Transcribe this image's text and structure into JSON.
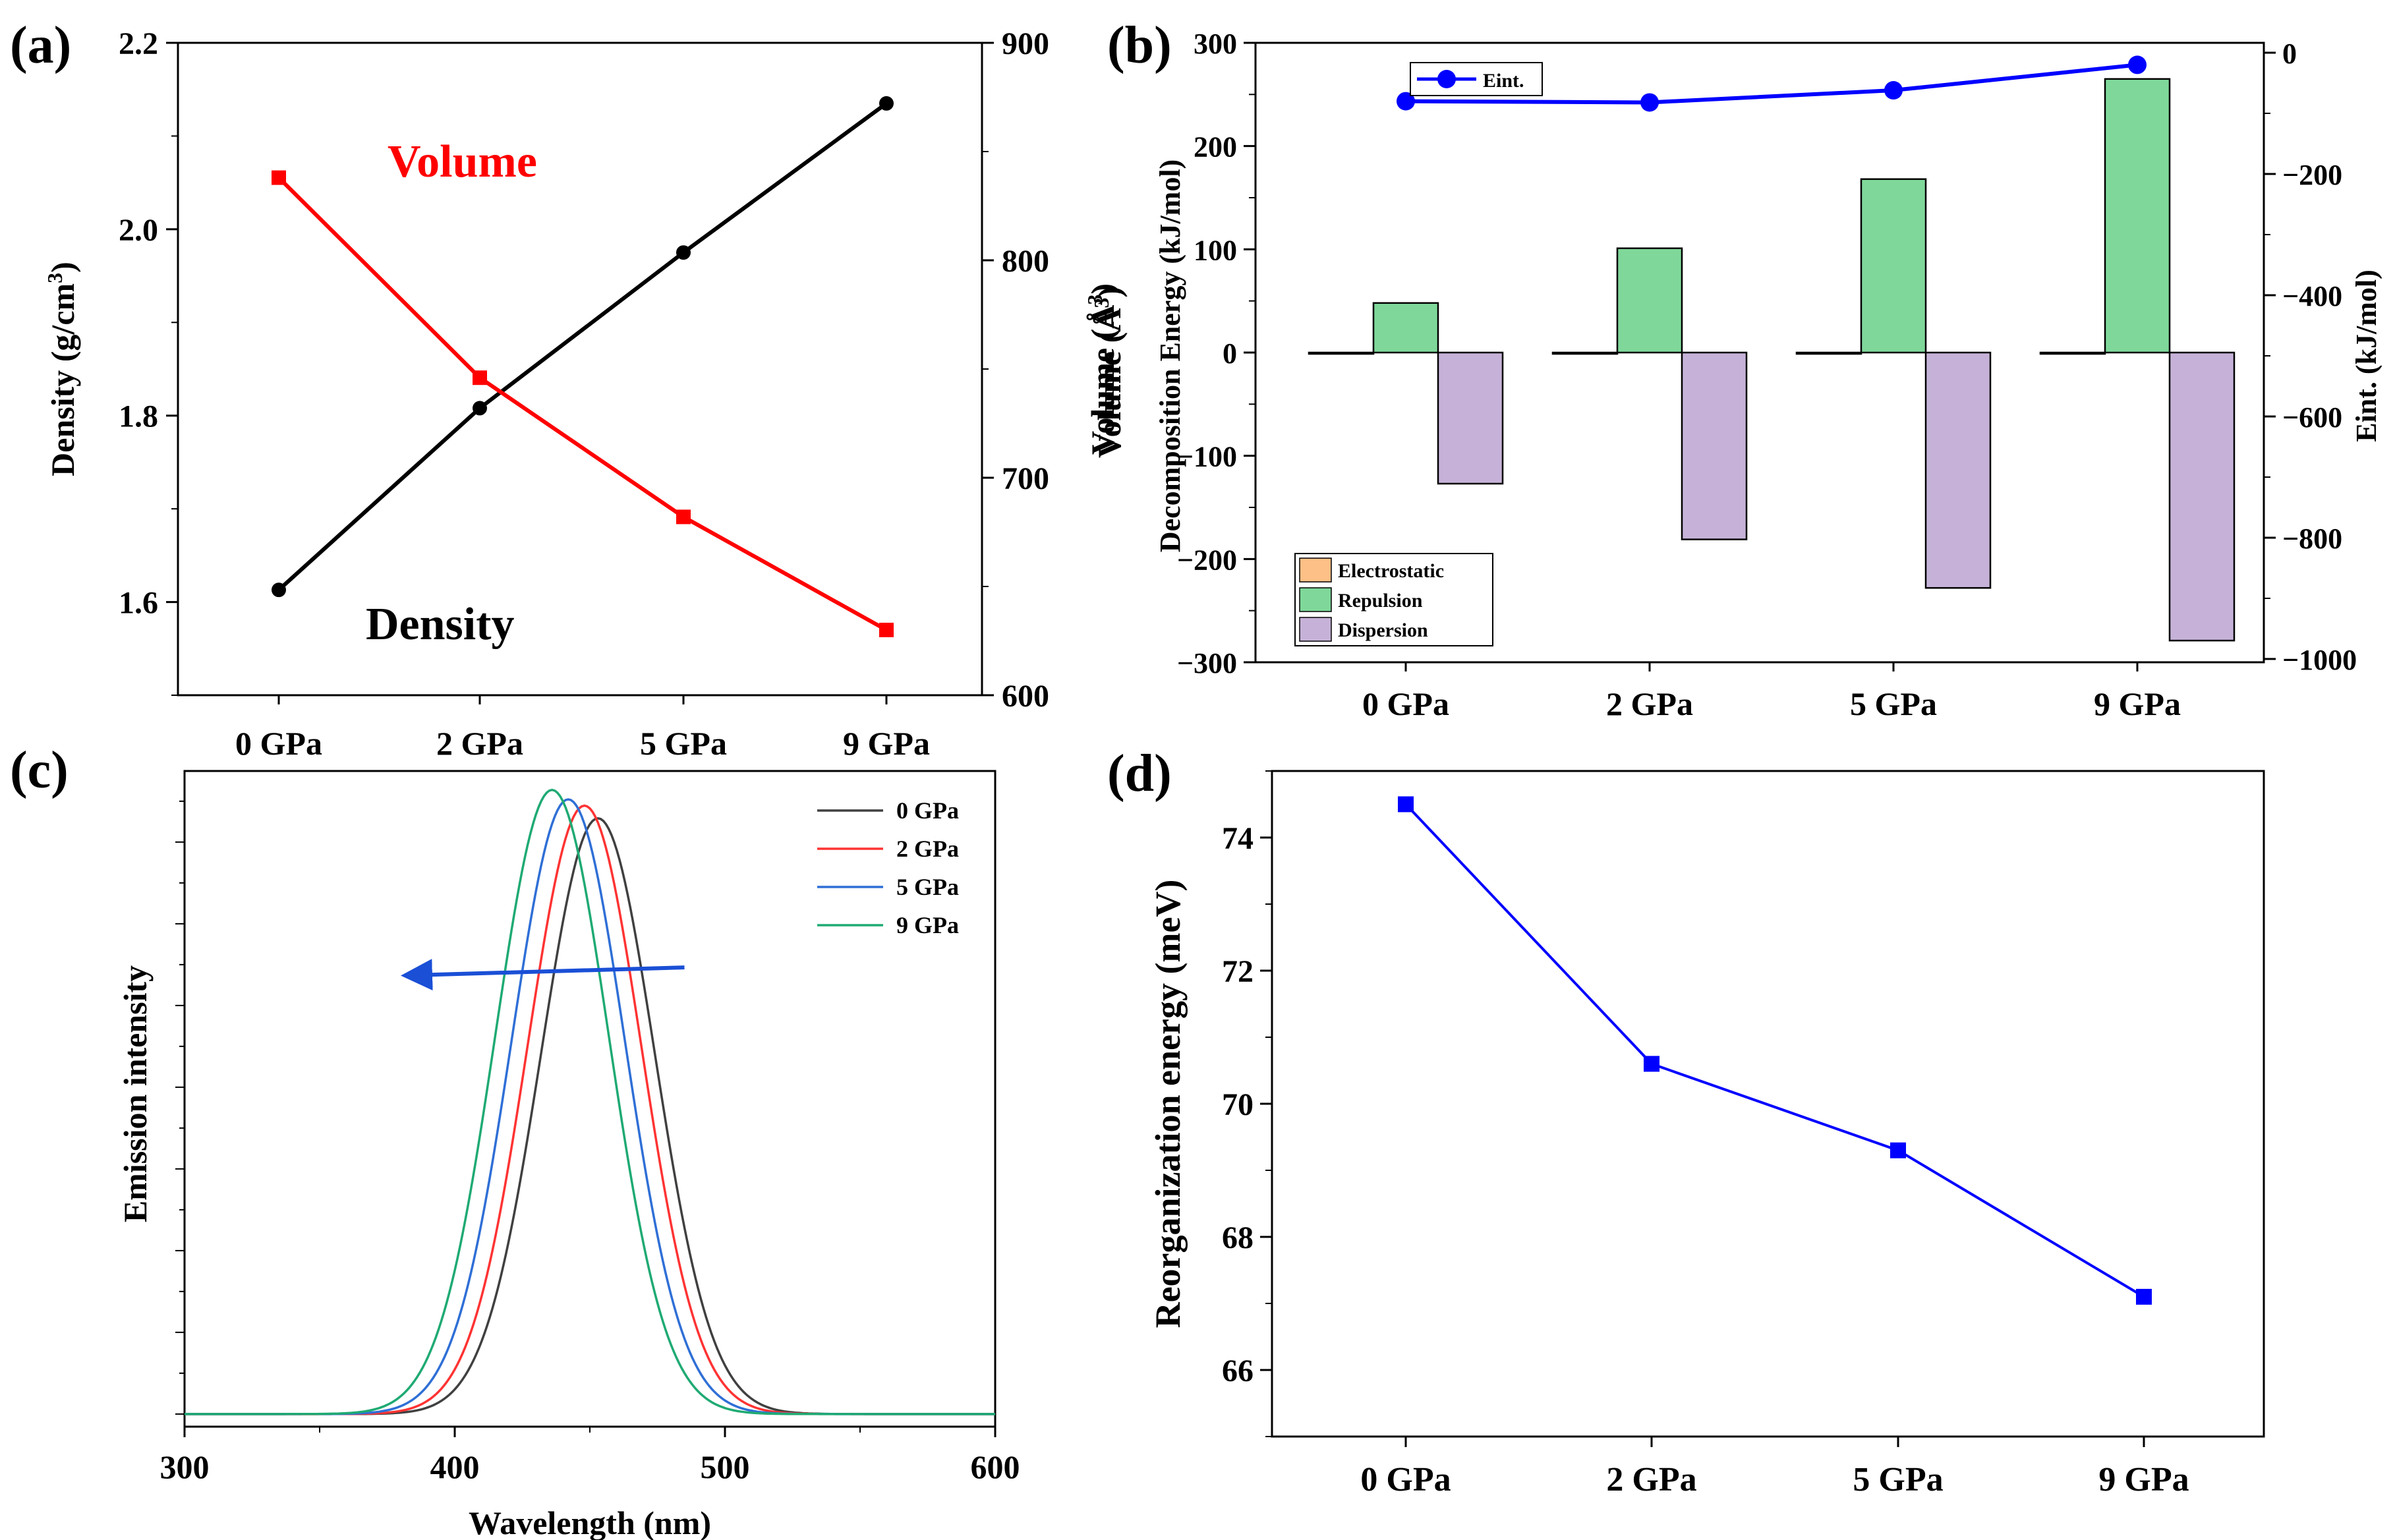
{
  "chart_data": [
    {
      "panel": "(a)",
      "type": "line",
      "categories": [
        "0 GPa",
        "2 GPa",
        "5 GPa",
        "9 GPa"
      ],
      "series": [
        {
          "name": "Density",
          "axis": "left",
          "color": "#000000",
          "marker": "circle",
          "values": [
            1.613,
            1.808,
            1.975,
            2.135
          ]
        },
        {
          "name": "Volume",
          "axis": "right",
          "color": "#ff0000",
          "marker": "square",
          "values": [
            838,
            746,
            682,
            630
          ]
        }
      ],
      "ylabel": "Density (g/cm",
      "ylabel_sup": "3",
      "ylabel_end": ")",
      "ylim": [
        1.5,
        2.2
      ],
      "yticks": [
        "1.6",
        "1.8",
        "2.0",
        "2.2"
      ],
      "y2label": "Volume (Å",
      "y2label_sup": "3",
      "y2label_end": ")",
      "y2lim": [
        600,
        900
      ],
      "y2ticks": [
        "600",
        "700",
        "800",
        "900"
      ],
      "annotations": {
        "volume": "Volume",
        "density": "Density"
      }
    },
    {
      "panel": "(b)",
      "type": "bar",
      "categories": [
        "0 GPa",
        "2 GPa",
        "5 GPa",
        "9 GPa"
      ],
      "series": [
        {
          "name": "Electrostatic",
          "color": "#fdc086",
          "values": [
            -1,
            -1,
            -1,
            -1
          ]
        },
        {
          "name": "Repulsion",
          "color": "#7fd89a",
          "values": [
            48,
            101,
            168,
            265
          ]
        },
        {
          "name": "Dispersion",
          "color": "#c6b2d8",
          "values": [
            -127,
            -181,
            -228,
            -279
          ]
        }
      ],
      "line_series": {
        "name": "Eint.",
        "axis": "right",
        "color": "#0000ff",
        "values": [
          -80,
          -82,
          -62,
          -20
        ]
      },
      "ylabel": "Decomposition Energy (kJ/mol)",
      "ylim": [
        -300,
        300
      ],
      "yticks": [
        "−300",
        "−200",
        "−100",
        "0",
        "100",
        "200",
        "300"
      ],
      "y2label": "Eint. (kJ/mol)",
      "y2lim": [
        -1000,
        0
      ],
      "y2ticks": [
        "−1000",
        "−800",
        "−600",
        "−400",
        "−200",
        "0"
      ]
    },
    {
      "panel": "(c)",
      "type": "line",
      "series": [
        {
          "name": "0 GPa",
          "color": "#404040",
          "peak": 453,
          "amplitude": 0.945
        },
        {
          "name": "2 GPa",
          "color": "#ff3333",
          "peak": 448,
          "amplitude": 0.965
        },
        {
          "name": "5 GPa",
          "color": "#2f6fd6",
          "peak": 442,
          "amplitude": 0.975
        },
        {
          "name": "9 GPa",
          "color": "#1faa73",
          "peak": 436,
          "amplitude": 0.99
        }
      ],
      "peak_width_nm": 21,
      "xlabel": "Wavelength (nm)",
      "ylabel": "Emission intensity",
      "xlim": [
        300,
        600
      ],
      "xticks": [
        "300",
        "400",
        "500",
        "600"
      ],
      "ylim": [
        -0.02,
        1.02
      ],
      "arrow": {
        "from": 485,
        "to": 400,
        "level": 0.7,
        "color": "#1a4fd6"
      }
    },
    {
      "panel": "(d)",
      "type": "line",
      "categories": [
        "0 GPa",
        "2 GPa",
        "5 GPa",
        "9 GPa"
      ],
      "series": [
        {
          "name": "Reorganization energy",
          "color": "#0000ff",
          "marker": "square",
          "values": [
            74.5,
            70.6,
            69.3,
            67.1
          ]
        }
      ],
      "ylabel": "Reorganization energy (meV)",
      "ylim": [
        65,
        75
      ],
      "yticks": [
        "66",
        "68",
        "70",
        "72",
        "74"
      ]
    }
  ]
}
